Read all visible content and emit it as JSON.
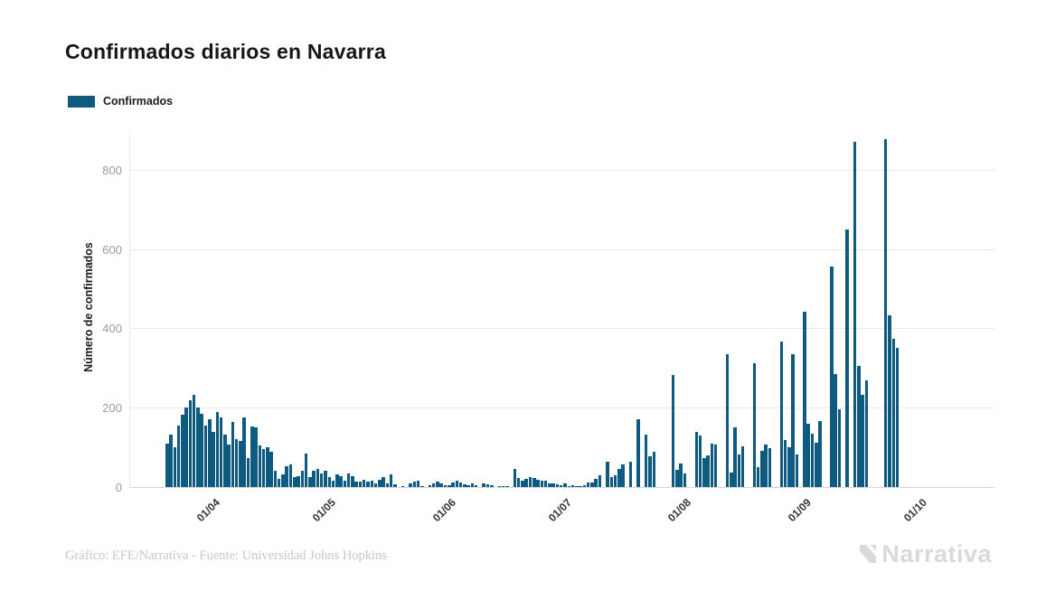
{
  "title": "Confirmados diarios en Navarra",
  "legend": {
    "items": [
      {
        "label": "Confirmados",
        "color": "#0f5b80"
      }
    ]
  },
  "footer": {
    "credit": "Gráfico: EFE/Narrativa - Fuente: Universidad Johns Hopkins",
    "brand": "Narrativa"
  },
  "chart_data": {
    "type": "bar",
    "title": "Confirmados diarios en Navarra",
    "series_name": "Confirmados",
    "xlabel": "",
    "ylabel": "Número de confirmados",
    "ylim": [
      0,
      900
    ],
    "y_ticks": [
      0,
      200,
      400,
      600,
      800
    ],
    "x_tick_labels": [
      "01/04",
      "01/05",
      "01/06",
      "01/07",
      "01/08",
      "01/09",
      "01/10"
    ],
    "x_tick_positions": [
      12,
      42,
      73,
      103,
      134,
      165,
      195
    ],
    "grid": "horizontal",
    "legend_position": "top-left",
    "bar_color": "#0f5b80",
    "values": [
      110,
      133,
      100,
      155,
      182,
      200,
      218,
      233,
      200,
      185,
      155,
      170,
      140,
      190,
      175,
      133,
      106,
      163,
      121,
      116,
      175,
      72,
      152,
      150,
      105,
      95,
      100,
      90,
      40,
      20,
      33,
      52,
      58,
      25,
      28,
      40,
      85,
      25,
      42,
      45,
      35,
      41,
      26,
      16,
      31,
      28,
      16,
      34,
      28,
      13,
      13,
      18,
      13,
      16,
      8,
      18,
      24,
      10,
      31,
      7,
      0,
      3,
      0,
      8,
      13,
      17,
      3,
      0,
      5,
      10,
      14,
      8,
      4,
      5,
      12,
      15,
      12,
      6,
      5,
      8,
      5,
      0,
      8,
      6,
      5,
      0,
      3,
      2,
      3,
      0,
      46,
      22,
      15,
      20,
      25,
      22,
      18,
      15,
      17,
      8,
      10,
      6,
      5,
      8,
      3,
      5,
      2,
      3,
      5,
      12,
      12,
      20,
      30,
      0,
      64,
      25,
      30,
      45,
      58,
      0,
      64,
      0,
      171,
      0,
      133,
      78,
      90,
      0,
      0,
      0,
      0,
      283,
      44,
      60,
      34,
      0,
      0,
      140,
      130,
      72,
      79,
      110,
      108,
      0,
      0,
      334,
      37,
      150,
      81,
      102,
      0,
      0,
      312,
      50,
      91,
      108,
      98,
      0,
      0,
      366,
      118,
      100,
      335,
      83,
      0,
      442,
      160,
      134,
      111,
      167,
      0,
      0,
      555,
      285,
      195,
      0,
      650,
      0,
      870,
      305,
      232,
      270,
      0,
      0,
      0,
      0,
      878,
      432,
      373,
      350
    ]
  }
}
